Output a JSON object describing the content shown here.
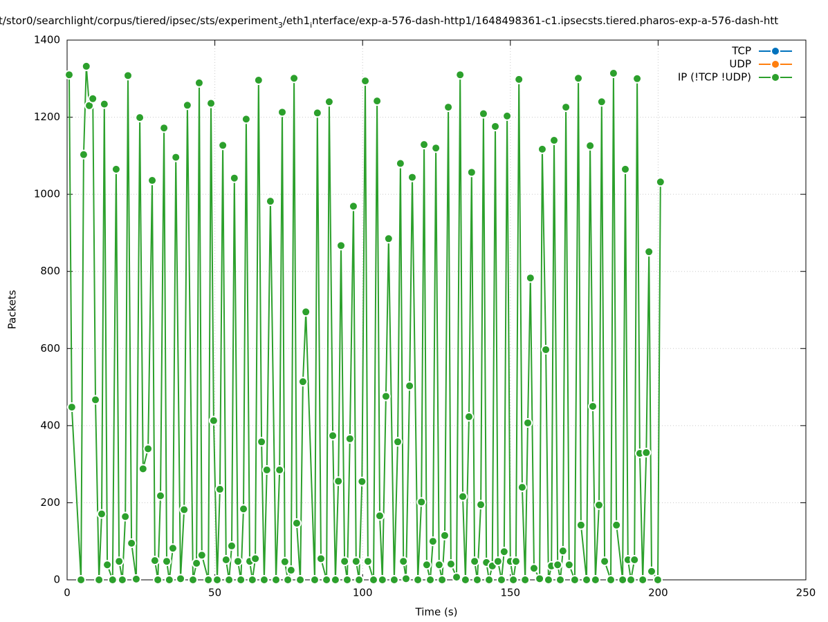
{
  "chart_data": {
    "type": "line",
    "title": [
      "t/stor0/searchlight/corpus/tiered/ipsec/sts/experiment",
      "3",
      "/eth1",
      "i",
      "nterface/exp-a-576-dash-http1/1648498361-c1.ipsecsts.tiered.pharos-exp-a-576-dash-htt"
    ],
    "x_label": "Time (s)",
    "y_label": "Packets",
    "xlim": [
      0,
      250
    ],
    "xticks": [
      0,
      50,
      100,
      150,
      200,
      250
    ],
    "ylim": [
      0,
      1400
    ],
    "yticks": [
      0,
      200,
      400,
      600,
      800,
      1000,
      1200,
      1400
    ],
    "grid": true,
    "legend": "top-right",
    "series": [
      {
        "name": "TCP",
        "color": "#0072bd",
        "x": [],
        "values": []
      },
      {
        "name": "UDP",
        "color": "#ff7f0e",
        "x": [],
        "values": []
      },
      {
        "name": "IP (!TCP  !UDP)",
        "color": "#2ca02c",
        "x": [
          0.7,
          1.6,
          4.7,
          5.6,
          6.5,
          7.5,
          8.7,
          9.6,
          10.8,
          11.7,
          12.6,
          13.6,
          15.4,
          16.6,
          17.6,
          18.7,
          19.7,
          20.6,
          21.8,
          23.4,
          24.6,
          25.7,
          27.4,
          28.8,
          29.7,
          30.7,
          31.6,
          32.8,
          33.7,
          34.6,
          35.8,
          36.8,
          38.4,
          39.6,
          40.7,
          42.6,
          43.8,
          44.7,
          45.6,
          47.8,
          48.7,
          49.6,
          50.8,
          51.7,
          52.7,
          53.8,
          54.8,
          55.7,
          56.6,
          57.8,
          58.8,
          59.7,
          60.6,
          61.8,
          62.7,
          63.7,
          64.8,
          65.8,
          66.7,
          67.6,
          68.8,
          70.7,
          71.9,
          72.8,
          73.7,
          74.7,
          75.8,
          76.8,
          77.7,
          78.9,
          79.8,
          80.8,
          83.8,
          84.7,
          85.9,
          87.8,
          88.7,
          89.9,
          90.8,
          91.8,
          92.7,
          93.9,
          94.8,
          95.7,
          96.9,
          97.8,
          98.8,
          99.8,
          100.9,
          101.8,
          103.7,
          104.9,
          105.8,
          106.7,
          107.9,
          108.8,
          110.7,
          111.9,
          112.8,
          113.8,
          114.7,
          115.9,
          116.8,
          118.7,
          119.9,
          120.8,
          121.7,
          122.9,
          123.8,
          124.8,
          125.9,
          126.9,
          127.8,
          129.0,
          129.9,
          131.8,
          133.0,
          133.9,
          134.8,
          136.0,
          136.9,
          137.9,
          138.8,
          140.0,
          140.9,
          141.9,
          142.8,
          143.9,
          144.9,
          145.8,
          147.0,
          147.9,
          148.9,
          150.0,
          151.0,
          151.9,
          152.9,
          154.0,
          155.0,
          155.9,
          156.8,
          158.0,
          159.9,
          160.8,
          162.0,
          162.9,
          163.9,
          164.8,
          166.0,
          166.9,
          167.8,
          168.8,
          169.9,
          171.8,
          173.0,
          173.9,
          175.8,
          177.0,
          177.9,
          178.8,
          180.0,
          180.9,
          181.9,
          184.0,
          184.9,
          185.9,
          188.0,
          188.9,
          189.8,
          190.8,
          192.0,
          192.9,
          193.8,
          194.8,
          196.0,
          196.9,
          197.8,
          199.9,
          200.8
        ],
        "values": [
          1310,
          448,
          0,
          1103,
          1332,
          1230,
          1248,
          467,
          0,
          171,
          1234,
          39,
          0,
          1065,
          48,
          0,
          164,
          1308,
          95,
          2,
          1199,
          288,
          340,
          1036,
          50,
          0,
          218,
          1172,
          48,
          0,
          82,
          1096,
          3,
          182,
          1231,
          0,
          43,
          1289,
          64,
          0,
          1236,
          413,
          0,
          235,
          1127,
          52,
          0,
          88,
          1042,
          48,
          0,
          184,
          1195,
          48,
          0,
          55,
          1296,
          358,
          0,
          285,
          982,
          0,
          285,
          1213,
          47,
          0,
          25,
          1301,
          147,
          0,
          514,
          695,
          0,
          1211,
          55,
          0,
          1240,
          374,
          0,
          256,
          867,
          48,
          0,
          366,
          969,
          48,
          0,
          255,
          1294,
          48,
          0,
          1242,
          166,
          0,
          476,
          885,
          0,
          358,
          1080,
          48,
          3,
          503,
          1044,
          0,
          202,
          1129,
          39,
          0,
          100,
          1120,
          39,
          0,
          115,
          1226,
          41,
          7,
          1310,
          216,
          0,
          423,
          1057,
          48,
          0,
          195,
          1209,
          45,
          0,
          36,
          1176,
          48,
          0,
          73,
          1203,
          48,
          0,
          48,
          1298,
          240,
          0,
          407,
          783,
          30,
          3,
          1117,
          597,
          0,
          36,
          1140,
          39,
          0,
          75,
          1226,
          39,
          0,
          1301,
          142,
          0,
          1126,
          450,
          0,
          194,
          1240,
          48,
          0,
          1314,
          142,
          0,
          1065,
          52,
          0,
          52,
          1300,
          328,
          0,
          330,
          851,
          22,
          0,
          1032
        ]
      }
    ]
  }
}
